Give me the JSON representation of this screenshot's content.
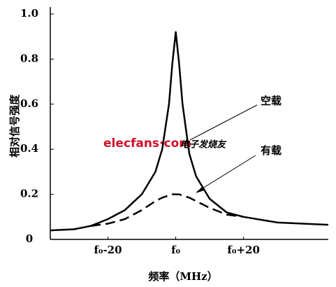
{
  "chart_data": {
    "type": "line",
    "y_label": "相对信号强度",
    "x_label": "频率（MHz）",
    "annotations": [
      "空载",
      "有载"
    ],
    "watermark": [
      "elecfans·com",
      "电子发烧友"
    ],
    "x": [
      -37,
      -30,
      -25,
      -20,
      -15,
      -10,
      -6,
      -4,
      -2,
      -1,
      0,
      1,
      2,
      4,
      6,
      10,
      15,
      20,
      30,
      45
    ],
    "series": [
      {
        "color": "#000000",
        "dash": false,
        "values": [
          0.04,
          0.045,
          0.06,
          0.09,
          0.13,
          0.2,
          0.3,
          0.4,
          0.6,
          0.78,
          0.92,
          0.78,
          0.6,
          0.38,
          0.28,
          0.18,
          0.12,
          0.1,
          0.075,
          0.065
        ]
      },
      {
        "color": "#000000",
        "dash": true,
        "values": [
          null,
          null,
          0.06,
          0.07,
          0.09,
          0.13,
          0.17,
          0.185,
          0.195,
          0.2,
          0.2,
          0.2,
          0.195,
          0.185,
          0.17,
          0.14,
          0.11,
          0.1,
          null,
          null
        ]
      }
    ],
    "xlim": [
      -37,
      45
    ],
    "xticks": [
      {
        "value": -20,
        "label": "f₀-20"
      },
      {
        "value": 0,
        "label": "f₀"
      },
      {
        "value": 20,
        "label": "f₀+20"
      }
    ],
    "ylim": [
      0,
      1.0
    ],
    "yticks": [
      0,
      0.2,
      0.4,
      0.6,
      0.8,
      {
        "value": 1.0,
        "label": "1.0"
      }
    ]
  }
}
